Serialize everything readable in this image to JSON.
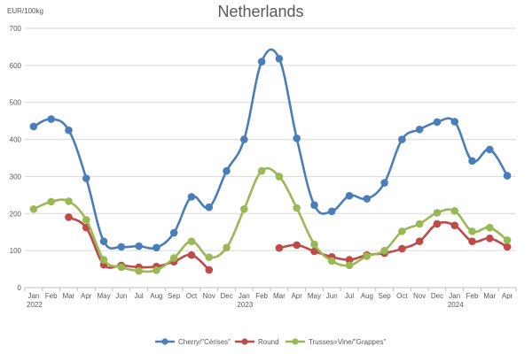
{
  "chart_data": {
    "type": "line",
    "title": "Netherlands",
    "ylabel": "EUR/100kg",
    "xlabel": "",
    "ylim": [
      0,
      700
    ],
    "yticks": [
      0,
      100,
      200,
      300,
      400,
      500,
      600,
      700
    ],
    "grid": "horizontal",
    "legend_position": "bottom",
    "categories": [
      "Jan",
      "Feb",
      "Mar",
      "Apr",
      "May",
      "Jun",
      "Jul",
      "Aug",
      "Sep",
      "Oct",
      "Nov",
      "Dec",
      "Jan",
      "Feb",
      "Mar",
      "Apr",
      "May",
      "Jun",
      "Jul",
      "Aug",
      "Sep",
      "Oct",
      "Nov",
      "Dec",
      "Jan",
      "Feb",
      "Mar",
      "Apr"
    ],
    "year_labels": [
      {
        "index": 0,
        "label": "2022"
      },
      {
        "index": 12,
        "label": "2023"
      },
      {
        "index": 24,
        "label": "2024"
      }
    ],
    "series": [
      {
        "name": "Cherry/\"Cérises\"",
        "color": "#4a7ebb",
        "values": [
          435,
          455,
          425,
          295,
          125,
          110,
          112,
          108,
          148,
          245,
          217,
          315,
          400,
          610,
          618,
          403,
          223,
          206,
          248,
          240,
          283,
          400,
          427,
          447,
          448,
          342,
          373,
          302
        ]
      },
      {
        "name": "Round",
        "color": "#be4b48",
        "values": [
          null,
          null,
          190,
          162,
          62,
          60,
          55,
          57,
          70,
          88,
          48,
          null,
          null,
          null,
          107,
          115,
          98,
          83,
          75,
          88,
          93,
          105,
          125,
          172,
          168,
          125,
          133,
          110
        ]
      },
      {
        "name": "Trusses=Vine/\"Grappes\"",
        "color": "#98b954",
        "values": [
          212,
          232,
          233,
          183,
          75,
          55,
          45,
          47,
          80,
          125,
          82,
          108,
          212,
          315,
          300,
          215,
          117,
          72,
          60,
          85,
          100,
          152,
          172,
          202,
          207,
          152,
          162,
          128
        ]
      }
    ]
  }
}
